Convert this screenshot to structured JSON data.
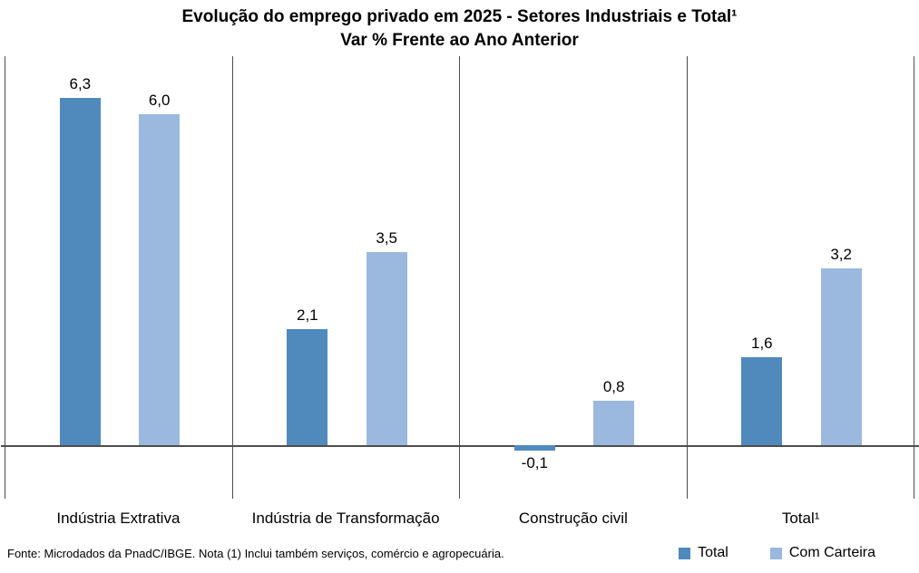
{
  "page": {
    "background": "#ffffff"
  },
  "chart_data": {
    "type": "bar",
    "title": "Evolução do emprego privado em 2025 - Setores Industriais e Total¹",
    "subtitle": "Var % Frente ao Ano Anterior",
    "categories": [
      "Indústria Extrativa",
      "Indústria de Transformação",
      "Construção civil",
      "Total¹"
    ],
    "series": [
      {
        "name": "Total",
        "color": "#5089bc",
        "values": [
          6.3,
          2.1,
          -0.1,
          1.6
        ],
        "labels": [
          "6,3",
          "2,1",
          "-0,1",
          "1,6"
        ]
      },
      {
        "name": "Com Carteira",
        "color": "#9bb9de",
        "values": [
          6.0,
          3.5,
          0.8,
          3.2
        ],
        "labels": [
          "6,0",
          "3,5",
          "0,8",
          "3,2"
        ]
      }
    ],
    "ylim": [
      -1,
      7.1
    ],
    "xlabel": "",
    "ylabel": "",
    "grid": "vertical-category-separators-only",
    "axis_color": "#4d4d4d",
    "value_label_format": "decimal-comma",
    "legend_position": "bottom-right"
  },
  "footer": {
    "text": "Fonte: Microdados da PnadC/IBGE. Nota (1) Inclui também serviços, comércio e agropecuária."
  }
}
